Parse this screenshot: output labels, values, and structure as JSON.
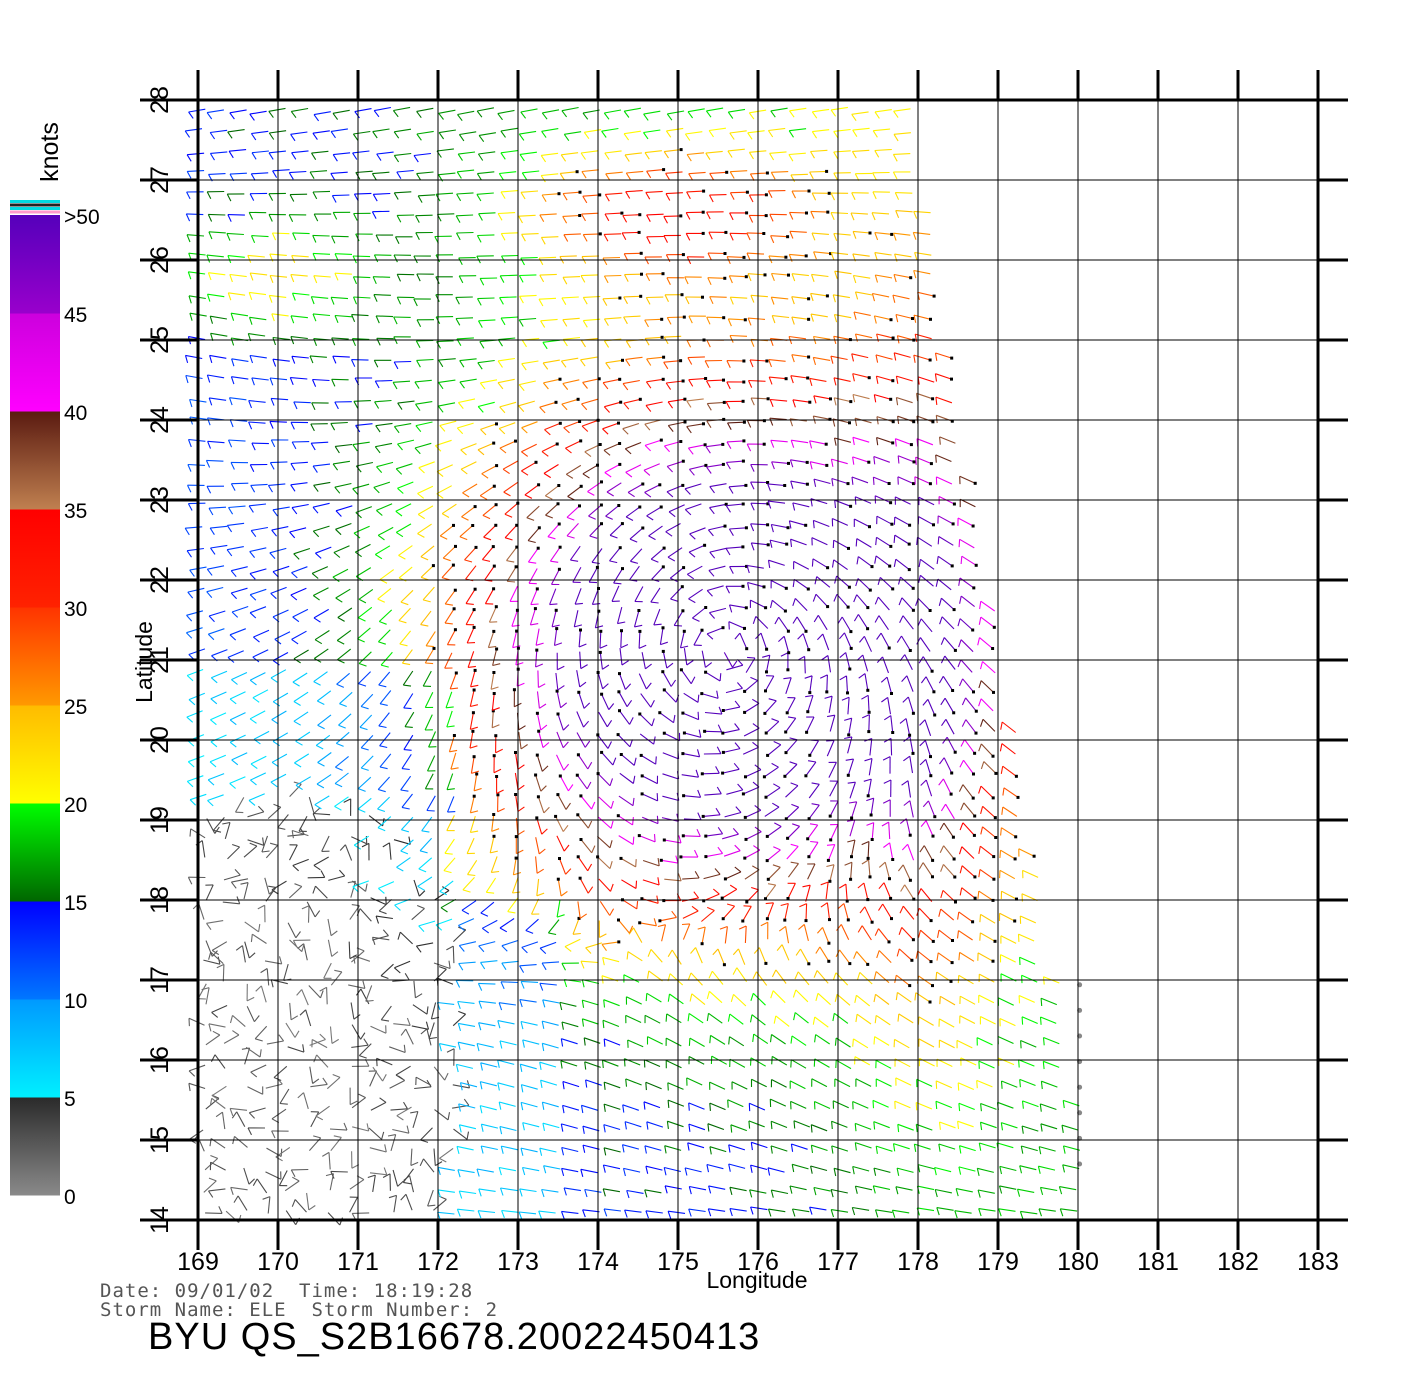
{
  "chart_data": {
    "type": "scatter",
    "subtype": "wind-vector-field",
    "xlabel": "Longitude",
    "ylabel": "Latitude",
    "xlim": [
      169,
      183
    ],
    "ylim": [
      14,
      28
    ],
    "xticks": [
      169,
      170,
      171,
      172,
      173,
      174,
      175,
      176,
      177,
      178,
      179,
      180,
      181,
      182,
      183
    ],
    "yticks": [
      14,
      15,
      16,
      17,
      18,
      19,
      20,
      21,
      22,
      23,
      24,
      25,
      26,
      27,
      28
    ],
    "grid": true,
    "swath_corners": [
      [
        169,
        28
      ],
      [
        178.0,
        28
      ],
      [
        180.3,
        14
      ],
      [
        169,
        14
      ]
    ],
    "vortex_center": [
      175.6,
      21.1
    ],
    "colorbar": {
      "unit": "knots",
      "tick_labels": [
        "0",
        "5",
        "10",
        "15",
        "20",
        "25",
        "30",
        "35",
        "40",
        "45",
        ">50"
      ],
      "bins": [
        {
          "from": 0,
          "to": 5,
          "colors": [
            "#8a8a8a",
            "#2a2a2a"
          ]
        },
        {
          "from": 5,
          "to": 10,
          "colors": [
            "#00f0ff",
            "#0099ff"
          ]
        },
        {
          "from": 10,
          "to": 15,
          "colors": [
            "#0077ff",
            "#0000ff"
          ]
        },
        {
          "from": 15,
          "to": 20,
          "colors": [
            "#006600",
            "#00ff00"
          ]
        },
        {
          "from": 20,
          "to": 25,
          "colors": [
            "#ffff00",
            "#ffbb00"
          ]
        },
        {
          "from": 25,
          "to": 30,
          "colors": [
            "#ff9900",
            "#ff3300"
          ]
        },
        {
          "from": 30,
          "to": 35,
          "colors": [
            "#ff2200",
            "#ff0000"
          ]
        },
        {
          "from": 35,
          "to": 40,
          "colors": [
            "#c08050",
            "#5a1a10"
          ]
        },
        {
          "from": 40,
          "to": 45,
          "colors": [
            "#ff00ff",
            "#cc00dd"
          ]
        },
        {
          "from": 45,
          "to": 50,
          "colors": [
            "#9900cc",
            "#5500bb"
          ]
        }
      ]
    }
  },
  "footer": {
    "date_line": "Date: 09/01/02  Time: 18:19:28",
    "storm_line": "Storm Name: ELE  Storm Number: 2",
    "title": "BYU QS_S2B16678.20022450413"
  }
}
